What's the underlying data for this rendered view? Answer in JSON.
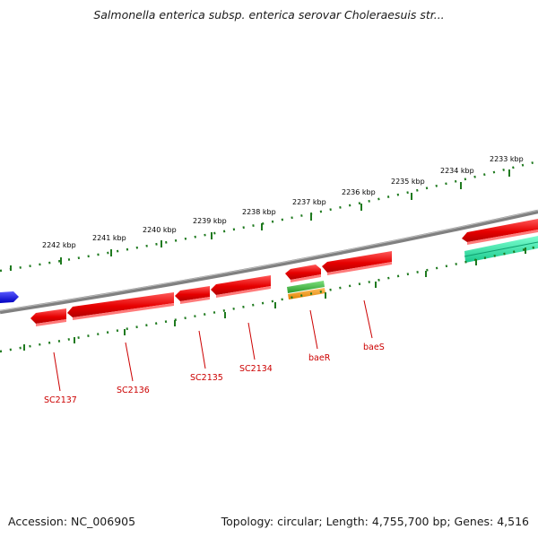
{
  "header": {
    "title": "Salmonella enterica subsp. enterica serovar Choleraesuis str..."
  },
  "footer": {
    "accession": "Accession: NC_006905",
    "summary": "Topology: circular; Length: 4,755,700 bp; Genes: 4,516"
  },
  "map": {
    "colors": {
      "backbone": "#808080",
      "tick_marks": "#1f7a1f",
      "gene_forward": "#e60000",
      "gene_blue": "#0000e6",
      "gene_teal": "#20e0a0",
      "baeR_green": "#33bb33",
      "baeR_orange": "#ff9900",
      "label": "#cc0000"
    },
    "scale_labels": [
      "2242 kbp",
      "2241 kbp",
      "2240 kbp",
      "2239 kbp",
      "2238 kbp",
      "2237 kbp",
      "2236 kbp",
      "2235 kbp",
      "2234 kbp",
      "2233 kbp"
    ],
    "gene_labels": [
      "SC2137",
      "SC2136",
      "SC2135",
      "SC2134",
      "baeR",
      "baeS"
    ]
  }
}
